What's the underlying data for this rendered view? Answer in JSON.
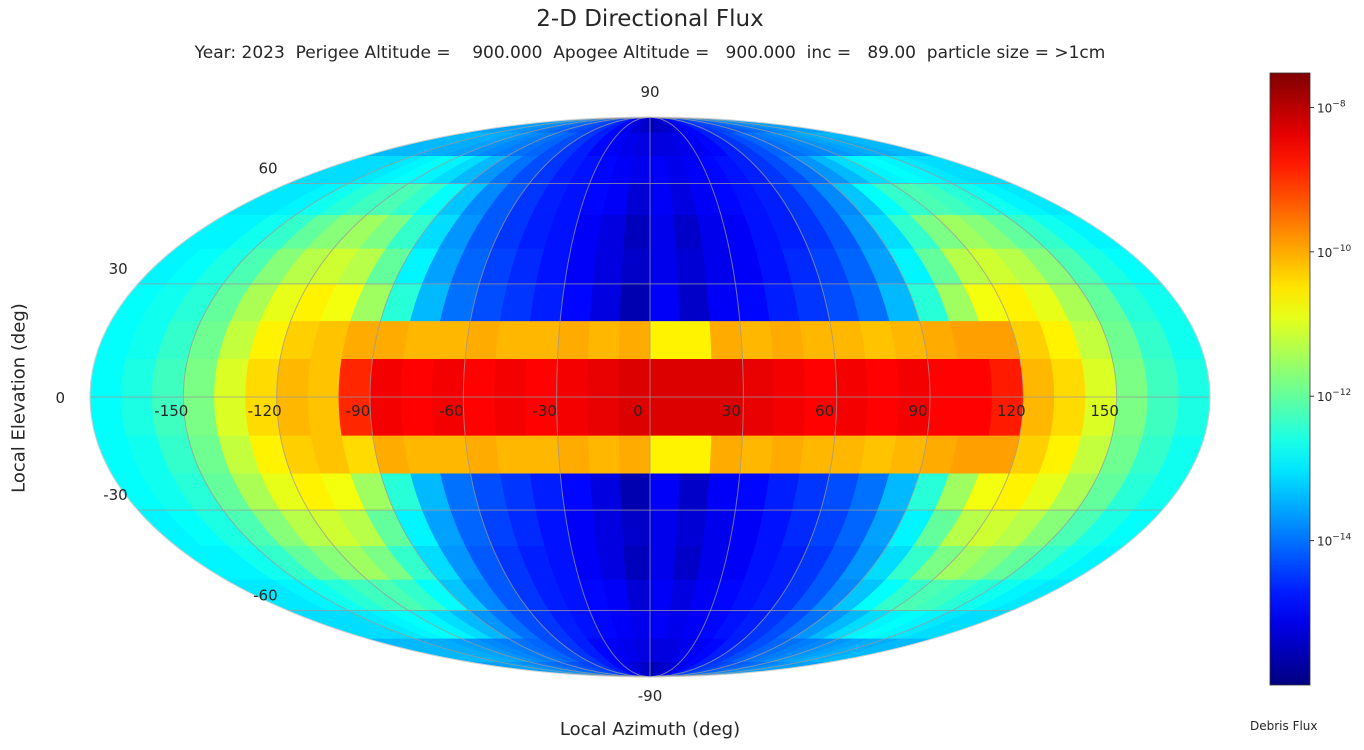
{
  "chart_data": {
    "type": "heatmap",
    "projection": "mollweide",
    "title": "2-D Directional Flux",
    "subtitle": "Year: 2023  Perigee Altitude =    900.000  Apogee Altitude =   900.000  inc =   89.00  particle size = >1cm",
    "xlabel": "Local Azimuth (deg)",
    "ylabel": "Local Elevation (deg)",
    "colorbar_label": "Debris Flux",
    "colormap": "jet",
    "log_scale": true,
    "color_range": [
      1e-16,
      3e-08
    ],
    "colorbar_ticks": [
      {
        "value": 1e-08,
        "base": "10",
        "exp": "−8"
      },
      {
        "value": 1e-10,
        "base": "10",
        "exp": "−10"
      },
      {
        "value": 1e-12,
        "base": "10",
        "exp": "−12"
      },
      {
        "value": 1e-14,
        "base": "10",
        "exp": "−14"
      }
    ],
    "x_ticks": [
      "-150",
      "-120",
      "-90",
      "-60",
      "-30",
      "0",
      "30",
      "60",
      "90",
      "120",
      "150"
    ],
    "x_tick_values": [
      -150,
      -120,
      -90,
      -60,
      -30,
      0,
      30,
      60,
      90,
      120,
      150
    ],
    "y_ticks": [
      "90",
      "60",
      "30",
      "0",
      "-30",
      "-60",
      "-90"
    ],
    "y_tick_values": [
      90,
      60,
      30,
      0,
      -30,
      -60,
      -90
    ],
    "grid": true,
    "xlim": [
      -180,
      180
    ],
    "ylim": [
      -90,
      90
    ],
    "cell_width_deg": 10,
    "elevation_bands": [
      {
        "lat": [
          -90,
          -80
        ],
        "log10": [
          -13.6,
          -13.6,
          -13.6,
          -13.6,
          -13.7,
          -13.8,
          -13.9,
          -14.0,
          -14.1,
          -14.2,
          -14.3,
          -14.4,
          -14.5,
          -14.7,
          -14.9,
          -15.1,
          -15.3,
          -15.4,
          -15.5,
          -15.4,
          -15.3,
          -15.1,
          -14.9,
          -14.7,
          -14.5,
          -14.4,
          -14.3,
          -14.2,
          -14.1,
          -14.0,
          -13.9,
          -13.8,
          -13.7,
          -13.6,
          -13.6,
          -13.6
        ]
      },
      {
        "lat": [
          -80,
          -70
        ],
        "log10": [
          -13.4,
          -13.4,
          -13.4,
          -13.5,
          -13.5,
          -13.6,
          -13.7,
          -13.8,
          -13.9,
          -14.0,
          -14.1,
          -14.3,
          -14.5,
          -14.7,
          -14.9,
          -15.0,
          -15.1,
          -15.2,
          -15.2,
          -15.2,
          -15.1,
          -15.0,
          -14.9,
          -14.7,
          -14.5,
          -14.3,
          -14.1,
          -14.0,
          -13.9,
          -13.8,
          -13.7,
          -13.6,
          -13.5,
          -13.5,
          -13.4,
          -13.4
        ]
      },
      {
        "lat": [
          -70,
          -60
        ],
        "log10": [
          -13.1,
          -13.1,
          -13.1,
          -13.0,
          -12.9,
          -12.8,
          -12.9,
          -13.1,
          -13.4,
          -13.7,
          -14.0,
          -14.3,
          -14.5,
          -14.7,
          -14.8,
          -14.9,
          -15.0,
          -15.1,
          -15.0,
          -15.1,
          -15.0,
          -14.9,
          -14.8,
          -14.7,
          -14.5,
          -14.3,
          -14.0,
          -13.7,
          -13.4,
          -13.1,
          -12.9,
          -12.8,
          -12.9,
          -13.0,
          -13.1,
          -13.1
        ]
      },
      {
        "lat": [
          -60,
          -50
        ],
        "log10": [
          -13.0,
          -13.0,
          -12.9,
          -12.7,
          -12.5,
          -12.3,
          -12.2,
          -12.4,
          -12.8,
          -13.3,
          -13.8,
          -14.2,
          -14.5,
          -14.7,
          -14.8,
          -14.9,
          -15.0,
          -15.3,
          -15.0,
          -15.2,
          -15.0,
          -14.9,
          -14.8,
          -14.7,
          -14.5,
          -14.2,
          -13.8,
          -13.3,
          -12.8,
          -12.4,
          -12.2,
          -12.3,
          -12.5,
          -12.7,
          -12.9,
          -13.0
        ]
      },
      {
        "lat": [
          -50,
          -40
        ],
        "log10": [
          -12.9,
          -12.9,
          -12.7,
          -12.4,
          -12.0,
          -11.7,
          -11.5,
          -11.8,
          -12.4,
          -13.1,
          -13.7,
          -14.2,
          -14.5,
          -14.7,
          -14.8,
          -15.0,
          -15.2,
          -15.5,
          -15.1,
          -15.4,
          -15.1,
          -15.0,
          -14.8,
          -14.7,
          -14.5,
          -14.2,
          -13.7,
          -13.1,
          -12.4,
          -11.8,
          -11.5,
          -11.7,
          -12.0,
          -12.4,
          -12.7,
          -12.9
        ]
      },
      {
        "lat": [
          -40,
          -30
        ],
        "log10": [
          -12.9,
          -12.8,
          -12.6,
          -12.2,
          -11.7,
          -11.3,
          -11.1,
          -11.3,
          -12.0,
          -12.9,
          -13.6,
          -14.1,
          -14.4,
          -14.6,
          -14.8,
          -15.0,
          -15.2,
          -15.4,
          -15.1,
          -15.3,
          -15.1,
          -15.0,
          -14.8,
          -14.6,
          -14.4,
          -14.1,
          -13.6,
          -12.9,
          -12.0,
          -11.3,
          -11.1,
          -11.3,
          -11.7,
          -12.2,
          -12.6,
          -12.8
        ]
      },
      {
        "lat": [
          -30,
          -20
        ],
        "log10": [
          -12.8,
          -12.7,
          -12.5,
          -12.0,
          -11.4,
          -10.9,
          -10.6,
          -10.8,
          -11.5,
          -12.5,
          -13.4,
          -14.0,
          -14.3,
          -14.5,
          -14.7,
          -14.9,
          -15.2,
          -15.6,
          -15.0,
          -15.4,
          -15.0,
          -14.9,
          -14.7,
          -14.5,
          -14.3,
          -14.0,
          -13.4,
          -12.5,
          -11.5,
          -10.8,
          -10.6,
          -10.9,
          -11.4,
          -12.0,
          -12.5,
          -12.7
        ]
      },
      {
        "lat": [
          -20,
          -10
        ],
        "log10": [
          -12.8,
          -12.7,
          -12.4,
          -11.9,
          -11.2,
          -10.6,
          -10.3,
          -10.2,
          -10.4,
          -10.0,
          -10.1,
          -10.1,
          -10.0,
          -10.1,
          -10.1,
          -10.0,
          -10.1,
          -10.0,
          -10.6,
          -10.6,
          -10.0,
          -10.1,
          -10.0,
          -10.1,
          -10.1,
          -10.2,
          -10.1,
          -10.0,
          -9.9,
          -9.9,
          -10.3,
          -10.6,
          -11.2,
          -11.9,
          -12.4,
          -12.7
        ]
      },
      {
        "lat": [
          -10,
          0
        ],
        "log10": [
          -12.8,
          -12.6,
          -12.3,
          -11.8,
          -11.0,
          -10.4,
          -10.1,
          -10.2,
          -8.9,
          -8.5,
          -8.6,
          -8.5,
          -8.6,
          -8.5,
          -8.6,
          -8.5,
          -8.4,
          -8.3,
          -8.3,
          -8.3,
          -8.3,
          -8.4,
          -8.5,
          -8.6,
          -8.5,
          -8.6,
          -8.5,
          -8.6,
          -8.6,
          -8.8,
          -10.1,
          -10.4,
          -11.0,
          -11.8,
          -12.3,
          -12.6
        ]
      },
      {
        "lat": [
          0,
          10
        ],
        "log10": [
          -12.8,
          -12.6,
          -12.3,
          -11.8,
          -11.0,
          -10.4,
          -10.1,
          -10.2,
          -8.9,
          -8.5,
          -8.6,
          -8.5,
          -8.6,
          -8.5,
          -8.6,
          -8.5,
          -8.4,
          -8.3,
          -8.3,
          -8.3,
          -8.3,
          -8.4,
          -8.5,
          -8.6,
          -8.5,
          -8.6,
          -8.5,
          -8.6,
          -8.6,
          -8.8,
          -10.1,
          -10.4,
          -11.0,
          -11.8,
          -12.3,
          -12.6
        ]
      },
      {
        "lat": [
          10,
          20
        ],
        "log10": [
          -12.8,
          -12.7,
          -12.4,
          -11.9,
          -11.2,
          -10.6,
          -10.3,
          -10.2,
          -10.0,
          -10.0,
          -10.1,
          -10.1,
          -10.0,
          -10.1,
          -10.1,
          -10.0,
          -10.1,
          -10.0,
          -10.6,
          -10.6,
          -10.0,
          -10.1,
          -10.0,
          -10.1,
          -10.1,
          -10.2,
          -10.1,
          -10.0,
          -9.9,
          -9.9,
          -10.3,
          -10.6,
          -11.2,
          -11.9,
          -12.4,
          -12.7
        ]
      },
      {
        "lat": [
          20,
          30
        ],
        "log10": [
          -12.8,
          -12.7,
          -12.5,
          -12.0,
          -11.4,
          -10.9,
          -10.6,
          -10.8,
          -11.5,
          -12.5,
          -13.4,
          -14.0,
          -14.3,
          -14.5,
          -14.7,
          -14.9,
          -15.2,
          -15.6,
          -15.0,
          -15.4,
          -15.0,
          -14.9,
          -14.7,
          -14.5,
          -14.3,
          -14.0,
          -13.4,
          -12.5,
          -11.5,
          -10.8,
          -10.6,
          -10.9,
          -11.4,
          -12.0,
          -12.5,
          -12.7
        ]
      },
      {
        "lat": [
          30,
          40
        ],
        "log10": [
          -12.9,
          -12.8,
          -12.6,
          -12.2,
          -11.7,
          -11.3,
          -11.1,
          -11.3,
          -12.0,
          -12.9,
          -13.6,
          -14.1,
          -14.4,
          -14.6,
          -14.8,
          -15.0,
          -15.2,
          -15.4,
          -15.1,
          -15.3,
          -15.1,
          -15.0,
          -14.8,
          -14.6,
          -14.4,
          -14.1,
          -13.6,
          -12.9,
          -12.0,
          -11.3,
          -11.1,
          -11.3,
          -11.7,
          -12.2,
          -12.6,
          -12.8
        ]
      },
      {
        "lat": [
          40,
          50
        ],
        "log10": [
          -12.9,
          -12.9,
          -12.7,
          -12.4,
          -12.0,
          -11.7,
          -11.5,
          -11.8,
          -12.4,
          -13.1,
          -13.7,
          -14.2,
          -14.5,
          -14.7,
          -14.8,
          -15.0,
          -15.2,
          -15.5,
          -15.1,
          -15.4,
          -15.1,
          -15.0,
          -14.8,
          -14.7,
          -14.5,
          -14.2,
          -13.7,
          -13.1,
          -12.4,
          -11.8,
          -11.5,
          -11.7,
          -12.0,
          -12.4,
          -12.7,
          -12.9
        ]
      },
      {
        "lat": [
          50,
          60
        ],
        "log10": [
          -13.0,
          -13.0,
          -12.9,
          -12.7,
          -12.5,
          -12.3,
          -12.2,
          -12.4,
          -12.8,
          -13.3,
          -13.8,
          -14.2,
          -14.5,
          -14.7,
          -14.8,
          -14.9,
          -15.0,
          -15.3,
          -15.0,
          -15.2,
          -15.0,
          -14.9,
          -14.8,
          -14.7,
          -14.5,
          -14.2,
          -13.8,
          -13.3,
          -12.8,
          -12.4,
          -12.2,
          -12.3,
          -12.5,
          -12.7,
          -12.9,
          -13.0
        ]
      },
      {
        "lat": [
          60,
          70
        ],
        "log10": [
          -13.1,
          -13.1,
          -13.1,
          -13.0,
          -12.9,
          -12.8,
          -12.9,
          -13.1,
          -13.4,
          -13.7,
          -14.0,
          -14.3,
          -14.5,
          -14.7,
          -14.8,
          -14.9,
          -15.0,
          -15.1,
          -15.0,
          -15.1,
          -15.0,
          -14.9,
          -14.8,
          -14.7,
          -14.5,
          -14.3,
          -14.0,
          -13.7,
          -13.4,
          -13.1,
          -12.9,
          -12.8,
          -12.9,
          -13.0,
          -13.1,
          -13.1
        ]
      },
      {
        "lat": [
          70,
          80
        ],
        "log10": [
          -13.4,
          -13.4,
          -13.4,
          -13.5,
          -13.5,
          -13.6,
          -13.7,
          -13.8,
          -13.9,
          -14.0,
          -14.1,
          -14.3,
          -14.5,
          -14.7,
          -14.9,
          -15.0,
          -15.1,
          -15.2,
          -15.2,
          -15.2,
          -15.1,
          -15.0,
          -14.9,
          -14.7,
          -14.5,
          -14.3,
          -14.1,
          -14.0,
          -13.9,
          -13.8,
          -13.7,
          -13.6,
          -13.5,
          -13.5,
          -13.4,
          -13.4
        ]
      },
      {
        "lat": [
          80,
          90
        ],
        "log10": [
          -13.6,
          -13.6,
          -13.6,
          -13.6,
          -13.7,
          -13.8,
          -13.9,
          -14.0,
          -14.1,
          -14.2,
          -14.3,
          -14.4,
          -14.5,
          -14.7,
          -14.9,
          -15.1,
          -15.3,
          -15.4,
          -15.5,
          -15.4,
          -15.3,
          -15.1,
          -14.9,
          -14.7,
          -14.5,
          -14.4,
          -14.3,
          -14.2,
          -14.1,
          -14.0,
          -13.9,
          -13.8,
          -13.7,
          -13.6,
          -13.6,
          -13.6
        ]
      }
    ]
  }
}
